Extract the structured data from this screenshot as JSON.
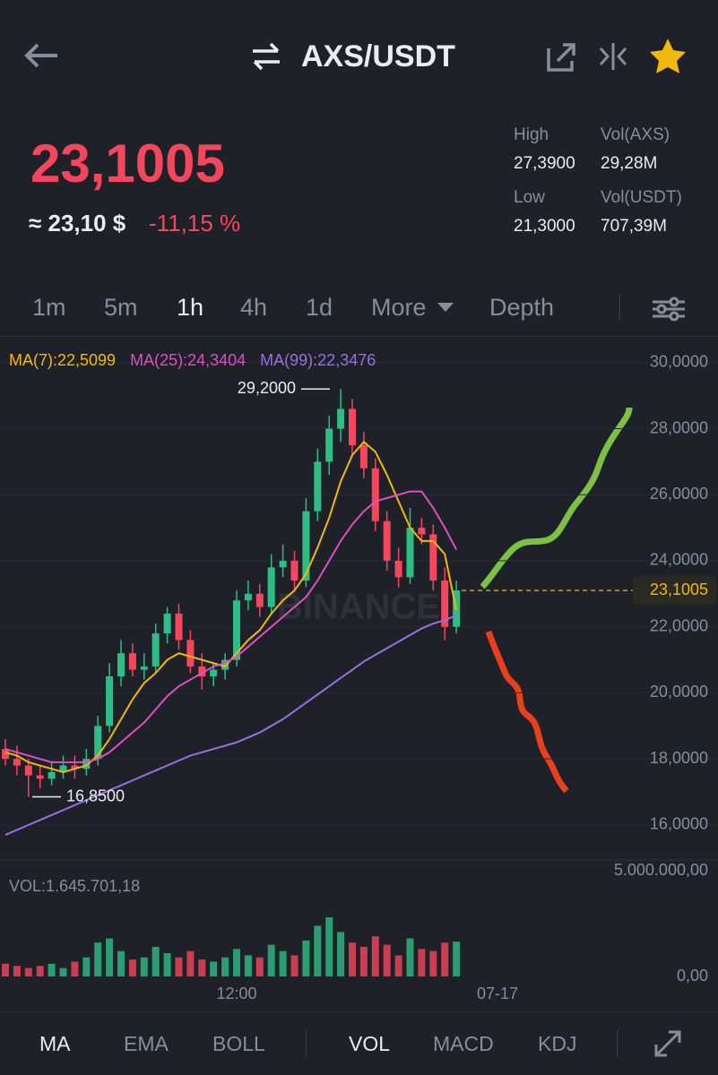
{
  "header": {
    "pair": "AXS/USDT",
    "price": "23,1005",
    "approx": "≈ 23,10 $",
    "change": "-11,15 %",
    "stats": [
      {
        "label": "High",
        "value": "27,3900"
      },
      {
        "label": "Vol(AXS)",
        "value": "29,28M"
      },
      {
        "label": "Low",
        "value": "21,3000"
      },
      {
        "label": "Vol(USDT)",
        "value": "707,39M"
      }
    ]
  },
  "intervals": [
    "1m",
    "5m",
    "1h",
    "4h",
    "1d",
    "More",
    "Depth"
  ],
  "chart_data": {
    "type": "candlestick",
    "legend": [
      {
        "name": "MA(7):22,5099",
        "color": "#f0b90b"
      },
      {
        "name": "MA(25):24,3404",
        "color": "#e04ec4"
      },
      {
        "name": "MA(99):22,3476",
        "color": "#9a6fe0"
      }
    ],
    "open": [
      18.3,
      18.0,
      17.8,
      17.5,
      17.4,
      17.6,
      17.8,
      17.7,
      18.0,
      19.0,
      20.5,
      21.2,
      20.7,
      20.8,
      21.8,
      22.4,
      21.6,
      20.8,
      20.5,
      20.7,
      21.0,
      22.8,
      23.0,
      22.6,
      23.8,
      24.0,
      23.4,
      25.5,
      27.0,
      28.0,
      28.6,
      27.5,
      26.8,
      25.2,
      24.0,
      23.5,
      25.0,
      24.8,
      23.4,
      22.0
    ],
    "high": [
      18.6,
      18.4,
      18.0,
      17.8,
      17.9,
      18.1,
      18.1,
      18.3,
      19.3,
      20.9,
      21.6,
      21.5,
      21.2,
      22.1,
      22.6,
      22.7,
      21.9,
      21.2,
      20.9,
      21.2,
      23.1,
      23.4,
      23.3,
      24.2,
      24.5,
      24.3,
      25.9,
      27.4,
      28.4,
      29.2,
      28.9,
      27.9,
      27.1,
      25.5,
      24.4,
      25.6,
      25.3,
      25.1,
      23.8,
      23.4
    ],
    "low": [
      17.8,
      17.5,
      16.85,
      17.1,
      17.2,
      17.4,
      17.4,
      17.5,
      17.8,
      18.8,
      20.2,
      20.5,
      20.4,
      20.6,
      21.5,
      21.3,
      20.6,
      20.1,
      20.2,
      20.4,
      20.8,
      22.5,
      22.3,
      22.4,
      23.5,
      23.1,
      23.2,
      25.2,
      26.6,
      27.6,
      27.2,
      26.5,
      24.9,
      23.7,
      23.2,
      23.3,
      24.5,
      23.1,
      21.6,
      21.8
    ],
    "close": [
      18.0,
      17.8,
      17.5,
      17.4,
      17.6,
      17.8,
      17.7,
      18.0,
      19.0,
      20.5,
      21.2,
      20.7,
      20.8,
      21.8,
      22.4,
      21.6,
      20.8,
      20.5,
      20.7,
      21.0,
      22.8,
      23.0,
      22.6,
      23.8,
      24.0,
      23.4,
      25.5,
      27.0,
      28.0,
      28.6,
      27.5,
      26.8,
      25.2,
      24.0,
      23.5,
      25.0,
      24.8,
      23.4,
      22.0,
      23.1005
    ],
    "ma": [
      [
        18.2,
        18.1,
        17.9,
        17.8,
        17.7,
        17.6,
        17.7,
        17.8,
        18.1,
        18.6,
        19.2,
        19.8,
        20.3,
        20.6,
        21.0,
        21.2,
        21.1,
        21.0,
        20.9,
        20.8,
        21.2,
        21.6,
        21.9,
        22.4,
        22.8,
        23.1,
        23.6,
        24.4,
        25.3,
        26.4,
        27.2,
        27.6,
        27.3,
        26.6,
        25.8,
        25.0,
        24.6,
        24.6,
        24.2,
        22.5099
      ],
      [
        18.3,
        18.2,
        18.1,
        18.0,
        17.9,
        17.9,
        17.9,
        17.9,
        18.0,
        18.2,
        18.5,
        18.8,
        19.1,
        19.5,
        19.9,
        20.2,
        20.4,
        20.6,
        20.8,
        20.9,
        21.1,
        21.4,
        21.7,
        22.0,
        22.3,
        22.6,
        22.9,
        23.4,
        24.0,
        24.6,
        25.1,
        25.5,
        25.8,
        25.9,
        26.0,
        26.1,
        26.1,
        25.6,
        25.0,
        24.3404
      ],
      [
        15.7,
        15.85,
        16.0,
        16.15,
        16.3,
        16.45,
        16.6,
        16.75,
        16.9,
        17.05,
        17.2,
        17.35,
        17.5,
        17.65,
        17.8,
        17.95,
        18.1,
        18.2,
        18.3,
        18.4,
        18.5,
        18.65,
        18.8,
        19.0,
        19.2,
        19.45,
        19.7,
        19.95,
        20.2,
        20.45,
        20.7,
        20.95,
        21.15,
        21.35,
        21.55,
        21.75,
        21.95,
        22.1,
        22.2,
        22.3476
      ]
    ],
    "ylim": [
      15.4,
      30.7
    ],
    "yticks": [
      {
        "value": 30,
        "label": "30,0000"
      },
      {
        "value": 28,
        "label": "28,0000"
      },
      {
        "value": 26,
        "label": "26,0000"
      },
      {
        "value": 24,
        "label": "24,0000"
      },
      {
        "value": 22,
        "label": "22,0000"
      },
      {
        "value": 20,
        "label": "20,0000"
      },
      {
        "value": 18,
        "label": "18,0000"
      },
      {
        "value": 16,
        "label": "16,0000"
      }
    ],
    "last_price": {
      "value": 23.1005,
      "label": "23,1005"
    },
    "annotations": [
      {
        "value": 29.2,
        "label": "29,2000"
      },
      {
        "value": 16.85,
        "label": "16,8500"
      }
    ],
    "watermark": "BINANCE",
    "x_labels": [
      "12:00",
      "07-17"
    ],
    "volume": {
      "label": "VOL:1.645.701,18",
      "values": [
        600000,
        500000,
        400000,
        500000,
        600000,
        400000,
        700000,
        900000,
        1600000,
        1800000,
        1200000,
        800000,
        900000,
        1400000,
        1100000,
        900000,
        1200000,
        800000,
        700000,
        900000,
        1300000,
        1000000,
        900000,
        1500000,
        1200000,
        1000000,
        1700000,
        2400000,
        2800000,
        2100000,
        1600000,
        1400000,
        1900000,
        1500000,
        1000000,
        1800000,
        1300000,
        1200000,
        1600000,
        1645701.18
      ],
      "ylim": [
        0,
        5000000
      ],
      "yticks": [
        {
          "value": 5000000,
          "label": "5.000.000,00"
        },
        {
          "value": 0,
          "label": "0,00"
        }
      ]
    }
  },
  "indicators": [
    "MA",
    "EMA",
    "BOLL",
    "VOL",
    "MACD",
    "KDJ"
  ]
}
